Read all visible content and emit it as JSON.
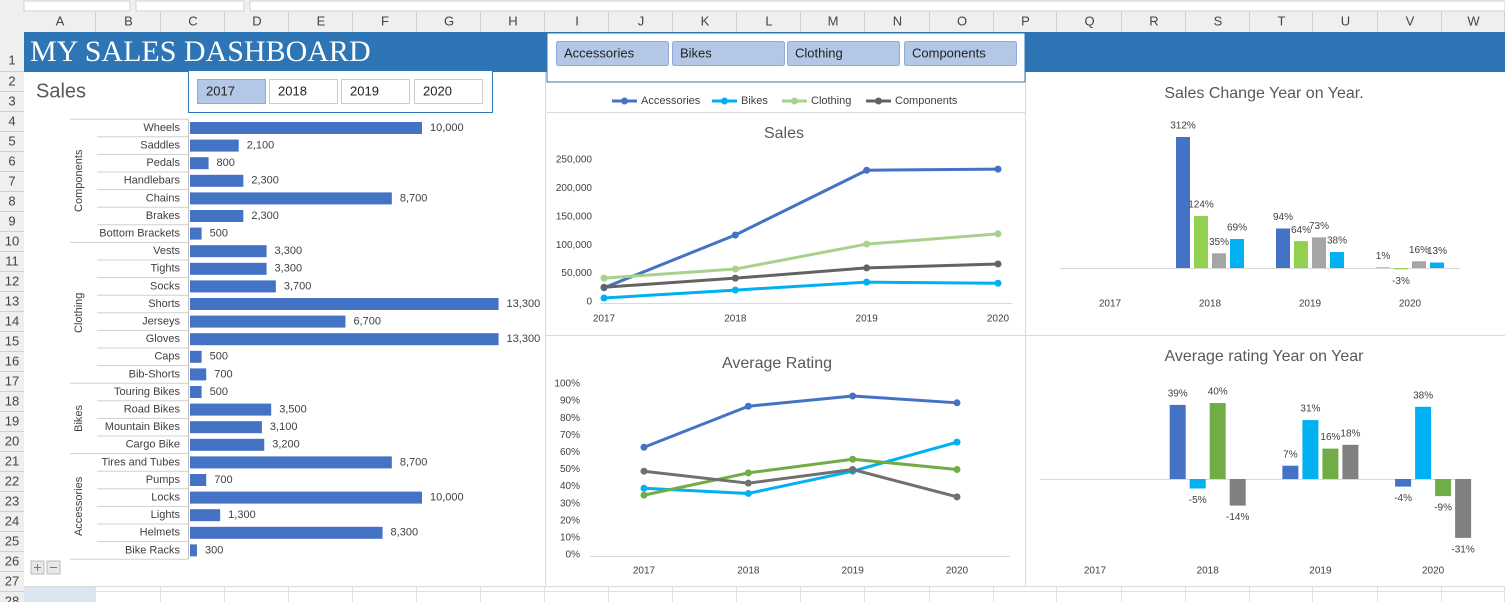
{
  "sheet": {
    "columns": [
      "A",
      "B",
      "C",
      "D",
      "E",
      "F",
      "G",
      "H",
      "I",
      "J",
      "K",
      "L",
      "M",
      "N",
      "O",
      "P",
      "Q",
      "R",
      "S",
      "T",
      "U",
      "V",
      "W"
    ],
    "rows": [
      1,
      2,
      3,
      4,
      5,
      6,
      7,
      8,
      9,
      10,
      11,
      12,
      13,
      14,
      15,
      16,
      17,
      18,
      19,
      20,
      21,
      22,
      23,
      24,
      25,
      26,
      27,
      28
    ]
  },
  "header": {
    "title": "MY SALES DASHBOARD"
  },
  "sales_label": "Sales",
  "year_slicer": {
    "items": [
      {
        "label": "2017",
        "selected": true
      },
      {
        "label": "2018",
        "selected": false
      },
      {
        "label": "2019",
        "selected": false
      },
      {
        "label": "2020",
        "selected": false
      }
    ]
  },
  "category_slicer": {
    "items": [
      {
        "label": "Accessories",
        "selected": true
      },
      {
        "label": "Bikes",
        "selected": true
      },
      {
        "label": "Clothing",
        "selected": true
      },
      {
        "label": "Components",
        "selected": true
      }
    ]
  },
  "chart_data": [
    {
      "type": "bar",
      "orientation": "horizontal",
      "color": "#4472c4",
      "groups": [
        {
          "name": "Components",
          "categories": [
            "Wheels",
            "Saddles",
            "Pedals",
            "Handlebars",
            "Chains",
            "Brakes",
            "Bottom Brackets"
          ],
          "values": [
            10000,
            2100,
            800,
            2300,
            8700,
            2300,
            500
          ],
          "value_labels": [
            "10,000",
            "2,100",
            "800",
            "2,300",
            "8,700",
            "2,300",
            "500"
          ]
        },
        {
          "name": "Clothing",
          "categories": [
            "Vests",
            "Tights",
            "Socks",
            "Shorts",
            "Jerseys",
            "Gloves",
            "Caps",
            "Bib-Shorts"
          ],
          "values": [
            3300,
            3300,
            3700,
            13300,
            6700,
            13300,
            500,
            700
          ],
          "value_labels": [
            "3,300",
            "3,300",
            "3,700",
            "13,300",
            "6,700",
            "13,300",
            "500",
            "700"
          ]
        },
        {
          "name": "Bikes",
          "categories": [
            "Touring Bikes",
            "Road Bikes",
            "Mountain Bikes",
            "Cargo Bike"
          ],
          "values": [
            500,
            3500,
            3100,
            3200
          ],
          "value_labels": [
            "500",
            "3,500",
            "3,100",
            "3,200"
          ]
        },
        {
          "name": "Accessories",
          "categories": [
            "Tires and Tubes",
            "Pumps",
            "Locks",
            "Lights",
            "Helmets",
            "Bike Racks"
          ],
          "values": [
            8700,
            700,
            10000,
            1300,
            8300,
            300
          ],
          "value_labels": [
            "8,700",
            "700",
            "10,000",
            "1,300",
            "8,300",
            "300"
          ]
        }
      ]
    },
    {
      "type": "line",
      "title": "Sales",
      "categories": [
        "2017",
        "2018",
        "2019",
        "2020"
      ],
      "legend": "top",
      "series": [
        {
          "name": "Accessories",
          "color": "#4472c4",
          "values": [
            25000,
            118000,
            232000,
            234000
          ]
        },
        {
          "name": "Bikes",
          "color": "#00b0f0",
          "values": [
            7000,
            21000,
            35000,
            33000
          ]
        },
        {
          "name": "Clothing",
          "color": "#a9d18e",
          "values": [
            42000,
            58000,
            102000,
            120000
          ]
        },
        {
          "name": "Components",
          "color": "#636363",
          "values": [
            26000,
            42000,
            60000,
            67000
          ]
        }
      ],
      "ylim": [
        0,
        250000
      ],
      "yticks": [
        0,
        {
          "value": 50000,
          "label": "50,000"
        },
        {
          "value": 100000,
          "label": "100,000"
        },
        {
          "value": 150000,
          "label": "150,000"
        },
        {
          "value": 200000,
          "label": "200,000"
        },
        {
          "value": 250000,
          "label": "250,000"
        }
      ]
    },
    {
      "type": "bar",
      "title": "Sales Change Year on Year.",
      "categories": [
        "2017",
        "2018",
        "2019",
        "2020"
      ],
      "series": [
        {
          "color": "#4472c4",
          "values": [
            null,
            312,
            94,
            1
          ],
          "value_labels": [
            null,
            "312%",
            "94%",
            "1%"
          ]
        },
        {
          "color": "#92d050",
          "values": [
            null,
            124,
            64,
            -3
          ],
          "value_labels": [
            null,
            "124%",
            "64%",
            "-3%"
          ]
        },
        {
          "color": "#a5a5a5",
          "values": [
            null,
            35,
            73,
            16
          ],
          "value_labels": [
            null,
            "35%",
            "73%",
            "16%"
          ]
        },
        {
          "color": "#00b0f0",
          "values": [
            null,
            69,
            38,
            13
          ],
          "value_labels": [
            null,
            "69%",
            "38%",
            "13%"
          ]
        }
      ]
    },
    {
      "type": "line",
      "title": "Average Rating",
      "categories": [
        "2017",
        "2018",
        "2019",
        "2020"
      ],
      "series": [
        {
          "color": "#4472c4",
          "values": [
            63,
            87,
            93,
            89
          ]
        },
        {
          "color": "#00b0f0",
          "values": [
            39,
            36,
            49,
            66
          ]
        },
        {
          "color": "#70ad47",
          "values": [
            35,
            48,
            56,
            50
          ]
        },
        {
          "color": "#707070",
          "values": [
            49,
            42,
            50,
            34
          ]
        }
      ],
      "ylim": [
        0,
        100
      ],
      "yticks": [
        {
          "value": 0,
          "label": "0%"
        },
        {
          "value": 10,
          "label": "10%"
        },
        {
          "value": 20,
          "label": "20%"
        },
        {
          "value": 30,
          "label": "30%"
        },
        {
          "value": 40,
          "label": "40%"
        },
        {
          "value": 50,
          "label": "50%"
        },
        {
          "value": 60,
          "label": "60%"
        },
        {
          "value": 70,
          "label": "70%"
        },
        {
          "value": 80,
          "label": "80%"
        },
        {
          "value": 90,
          "label": "90%"
        },
        {
          "value": 100,
          "label": "100%"
        }
      ]
    },
    {
      "type": "bar",
      "title": "Average rating Year on Year",
      "categories": [
        "2017",
        "2018",
        "2019",
        "2020"
      ],
      "series": [
        {
          "color": "#4472c4",
          "values": [
            null,
            39,
            7,
            -4
          ],
          "value_labels": [
            null,
            "39%",
            "7%",
            "-4%"
          ]
        },
        {
          "color": "#00b0f0",
          "values": [
            null,
            -5,
            31,
            38
          ],
          "value_labels": [
            null,
            "-5%",
            "31%",
            "38%"
          ]
        },
        {
          "color": "#70ad47",
          "values": [
            null,
            40,
            16,
            -9
          ],
          "value_labels": [
            null,
            "40%",
            "16%",
            "-9%"
          ]
        },
        {
          "color": "#808080",
          "values": [
            null,
            -14,
            18,
            -31
          ],
          "value_labels": [
            null,
            "-14%",
            "18%",
            "-31%"
          ]
        }
      ]
    }
  ]
}
